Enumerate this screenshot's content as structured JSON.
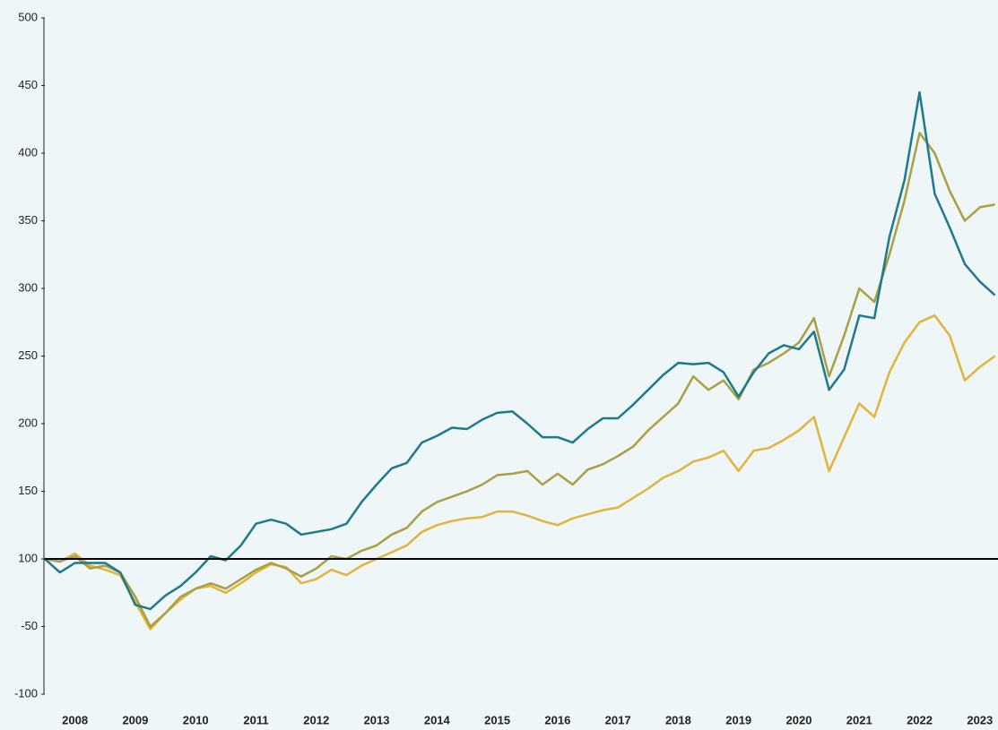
{
  "chart_data": {
    "type": "line",
    "x": [
      2008,
      2008.25,
      2008.5,
      2008.75,
      2009,
      2009.25,
      2009.5,
      2009.75,
      2010,
      2010.25,
      2010.5,
      2010.75,
      2011,
      2011.25,
      2011.5,
      2011.75,
      2012,
      2012.25,
      2012.5,
      2012.75,
      2013,
      2013.25,
      2013.5,
      2013.75,
      2014,
      2014.25,
      2014.5,
      2014.75,
      2015,
      2015.25,
      2015.5,
      2015.75,
      2016,
      2016.25,
      2016.5,
      2016.75,
      2017,
      2017.25,
      2017.5,
      2017.75,
      2018,
      2018.25,
      2018.5,
      2018.75,
      2019,
      2019.25,
      2019.5,
      2019.75,
      2020,
      2020.25,
      2020.5,
      2020.75,
      2021,
      2021.25,
      2021.5,
      2021.75,
      2022,
      2022.25,
      2022.5,
      2022.75,
      2023,
      2023.25,
      2023.5,
      2023.75
    ],
    "series": [
      {
        "color": "#e2b43a",
        "values": [
          100,
          98,
          104,
          95,
          92,
          88,
          68,
          48,
          60,
          70,
          78,
          80,
          75,
          82,
          90,
          96,
          94,
          82,
          85,
          92,
          88,
          95,
          100,
          105,
          110,
          120,
          125,
          128,
          130,
          131,
          135,
          135,
          132,
          128,
          125,
          130,
          133,
          136,
          138,
          145,
          152,
          160,
          165,
          172,
          175,
          180,
          165,
          180,
          182,
          188,
          195,
          205,
          165,
          190,
          215,
          205,
          238,
          260,
          275,
          280,
          265,
          232,
          242,
          250
        ]
      },
      {
        "color": "#a9a043",
        "values": [
          100,
          98,
          102,
          93,
          95,
          90,
          72,
          50,
          60,
          72,
          78,
          82,
          78,
          85,
          92,
          97,
          93,
          87,
          93,
          102,
          100,
          106,
          110,
          118,
          123,
          135,
          142,
          146,
          150,
          155,
          162,
          163,
          165,
          155,
          163,
          155,
          166,
          170,
          176,
          183,
          195,
          205,
          215,
          235,
          225,
          232,
          218,
          240,
          245,
          252,
          260,
          278,
          235,
          265,
          300,
          290,
          325,
          365,
          415,
          400,
          372,
          350,
          360,
          362
        ]
      },
      {
        "color": "#1d7a8a",
        "values": [
          100,
          90,
          97,
          97,
          97,
          90,
          66,
          63,
          73,
          80,
          90,
          102,
          99,
          110,
          126,
          129,
          126,
          118,
          120,
          122,
          126,
          142,
          155,
          167,
          171,
          186,
          191,
          197,
          196,
          203,
          208,
          209,
          200,
          190,
          190,
          186,
          196,
          204,
          204,
          214,
          225,
          236,
          245,
          244,
          245,
          238,
          220,
          238,
          252,
          258,
          255,
          268,
          225,
          240,
          280,
          278,
          338,
          380,
          445,
          370,
          345,
          318,
          305,
          295
        ]
      }
    ],
    "reference_line": 100,
    "xlim": [
      2008,
      2023.8
    ],
    "xticks": [
      {
        "value": 2008.5,
        "label": "2008"
      },
      {
        "value": 2009.5,
        "label": "2009"
      },
      {
        "value": 2010.5,
        "label": "2010"
      },
      {
        "value": 2011.5,
        "label": "2011"
      },
      {
        "value": 2012.5,
        "label": "2012"
      },
      {
        "value": 2013.5,
        "label": "2013"
      },
      {
        "value": 2014.5,
        "label": "2014"
      },
      {
        "value": 2015.5,
        "label": "2015"
      },
      {
        "value": 2016.5,
        "label": "2016"
      },
      {
        "value": 2017.5,
        "label": "2017"
      },
      {
        "value": 2018.5,
        "label": "2018"
      },
      {
        "value": 2019.5,
        "label": "2019"
      },
      {
        "value": 2020.5,
        "label": "2020"
      },
      {
        "value": 2021.5,
        "label": "2021"
      },
      {
        "value": 2022.5,
        "label": "2022"
      },
      {
        "value": 2023.5,
        "label": "2023"
      }
    ],
    "ylim": [
      0,
      500
    ],
    "yticks": [
      500,
      450,
      400,
      350,
      300,
      250,
      200,
      150,
      100,
      {
        "value": 50,
        "label": "-50"
      },
      {
        "value": 0,
        "label": "-100"
      }
    ]
  }
}
